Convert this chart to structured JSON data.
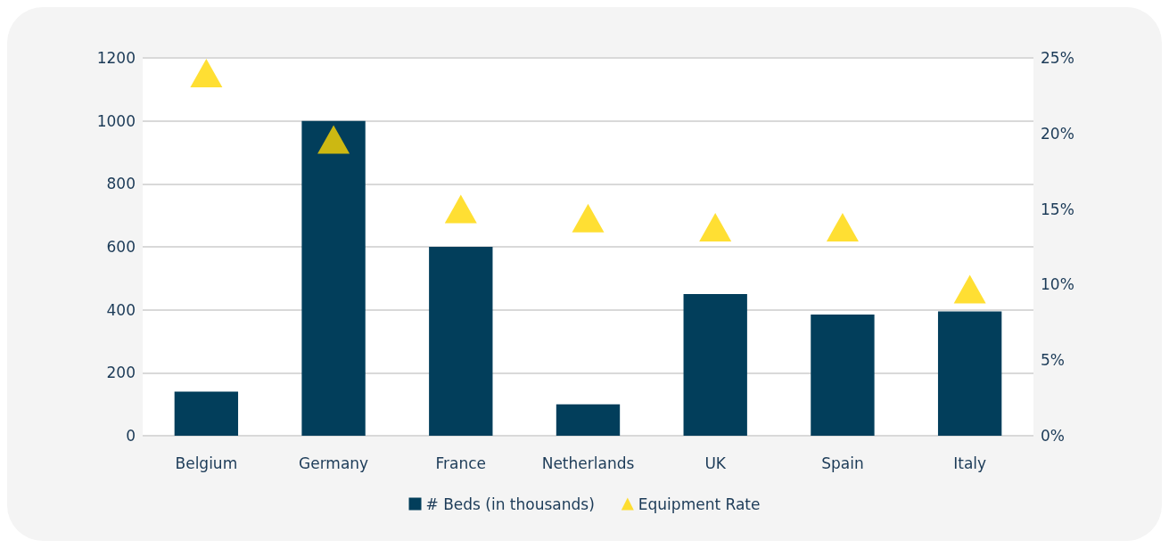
{
  "chart_data": {
    "type": "bar",
    "categories": [
      "Belgium",
      "Germany",
      "France",
      "Netherlands",
      "UK",
      "Spain",
      "Italy"
    ],
    "series": [
      {
        "name": "# Beds (in thousands)",
        "color": "#023e5b",
        "values": [
          140,
          1000,
          600,
          100,
          450,
          385,
          395
        ]
      },
      {
        "name": "Equipment Rate",
        "type": "scatter",
        "axis": "y2",
        "color": "#ffd700",
        "values": [
          24,
          19.6,
          15,
          14.4,
          13.8,
          13.8,
          9.7
        ]
      }
    ],
    "ylim": [
      0,
      1200
    ],
    "yticks": [
      0,
      200,
      400,
      600,
      800,
      1000,
      1200
    ],
    "y2lim": [
      0,
      25
    ],
    "y2ticks": [
      {
        "value": 0,
        "label": "0%"
      },
      {
        "value": 5,
        "label": "5%"
      },
      {
        "value": 10,
        "label": "10%"
      },
      {
        "value": 15,
        "label": "15%"
      },
      {
        "value": 20,
        "label": "20%"
      },
      {
        "value": 25,
        "label": "25%"
      }
    ],
    "grid": "y",
    "legend": "bottom",
    "marker": "triangle"
  }
}
